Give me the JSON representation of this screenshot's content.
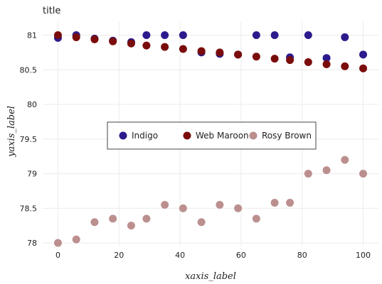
{
  "chart_data": {
    "type": "scatter",
    "title": "title",
    "xlabel": "xaxis_label",
    "ylabel": "yaxis_label",
    "xlim": [
      -5,
      105
    ],
    "ylim": [
      77.95,
      81.2
    ],
    "x_ticks": [
      0,
      20,
      40,
      60,
      80,
      100
    ],
    "y_ticks": [
      78,
      78.5,
      79,
      79.5,
      80,
      80.5,
      81
    ],
    "grid": true,
    "legend_position": "center",
    "x": [
      0,
      6,
      12,
      18,
      24,
      29,
      35,
      41,
      47,
      53,
      59,
      65,
      71,
      76,
      82,
      88,
      94,
      100
    ],
    "series": [
      {
        "name": "Indigo",
        "color": "#2d1a8c",
        "values": [
          80.96,
          81.0,
          80.95,
          80.92,
          80.9,
          81.0,
          81.0,
          81.0,
          80.75,
          80.73,
          80.72,
          81.0,
          81.0,
          80.68,
          81.0,
          80.67,
          80.97,
          80.72
        ]
      },
      {
        "name": "Web Maroon",
        "color": "#7a0c0c",
        "values": [
          81.0,
          80.97,
          80.94,
          80.91,
          80.88,
          80.85,
          80.83,
          80.8,
          80.77,
          80.75,
          80.72,
          80.69,
          80.66,
          80.64,
          80.61,
          80.58,
          80.55,
          80.52
        ]
      },
      {
        "name": "Rosy Brown",
        "color": "#bc8f8f",
        "values": [
          78.0,
          78.05,
          78.3,
          78.35,
          78.25,
          78.35,
          78.55,
          78.5,
          78.3,
          78.55,
          78.5,
          78.35,
          78.58,
          78.58,
          79.0,
          79.05,
          79.2,
          79.0
        ]
      }
    ]
  }
}
